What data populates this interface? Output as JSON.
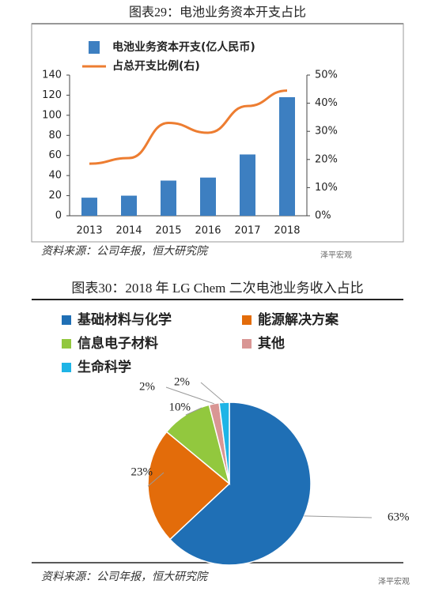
{
  "chart_data": [
    {
      "type": "bar-line",
      "title": "图表29：电池业务资本开支占比",
      "categories": [
        "2013",
        "2014",
        "2015",
        "2016",
        "2017",
        "2018"
      ],
      "series": [
        {
          "name": "电池业务资本开支(亿人民币)",
          "type": "bar",
          "color": "#3d7fc1",
          "values": [
            18,
            20,
            35,
            38,
            61,
            118
          ]
        },
        {
          "name": "占总开支比例(右)",
          "type": "line",
          "axis": "y2",
          "color": "#ed7d31",
          "values": [
            18.5,
            20.5,
            33,
            29.5,
            39,
            44.5
          ]
        }
      ],
      "ylim": [
        0,
        140
      ],
      "yticks": [
        0,
        20,
        40,
        60,
        80,
        100,
        120,
        140
      ],
      "y2lim": [
        0,
        50
      ],
      "y2ticks": [
        {
          "value": 0,
          "label": "0%"
        },
        {
          "value": 10,
          "label": "10%"
        },
        {
          "value": 20,
          "label": "20%"
        },
        {
          "value": 30,
          "label": "30%"
        },
        {
          "value": 40,
          "label": "40%"
        },
        {
          "value": 50,
          "label": "50%"
        }
      ],
      "source": "资料来源：公司年报，恒大研究院",
      "watermark": "泽平宏观"
    },
    {
      "type": "pie",
      "title": "图表30：2018 年 LG Chem 二次电池业务收入占比",
      "categories": [
        "基础材料与化学",
        "能源解决方案",
        "信息电子材料",
        "其他",
        "生命科学"
      ],
      "values": [
        63,
        23,
        10,
        2,
        2
      ],
      "value_labels": [
        "63%",
        "23%",
        "10%",
        "2%",
        "2%"
      ],
      "colors": [
        "#1f6fb5",
        "#e36c0a",
        "#92c83e",
        "#d99694",
        "#1eb4e6"
      ],
      "source": "资料来源：公司年报，恒大研究院",
      "watermark": "泽平宏观"
    }
  ]
}
